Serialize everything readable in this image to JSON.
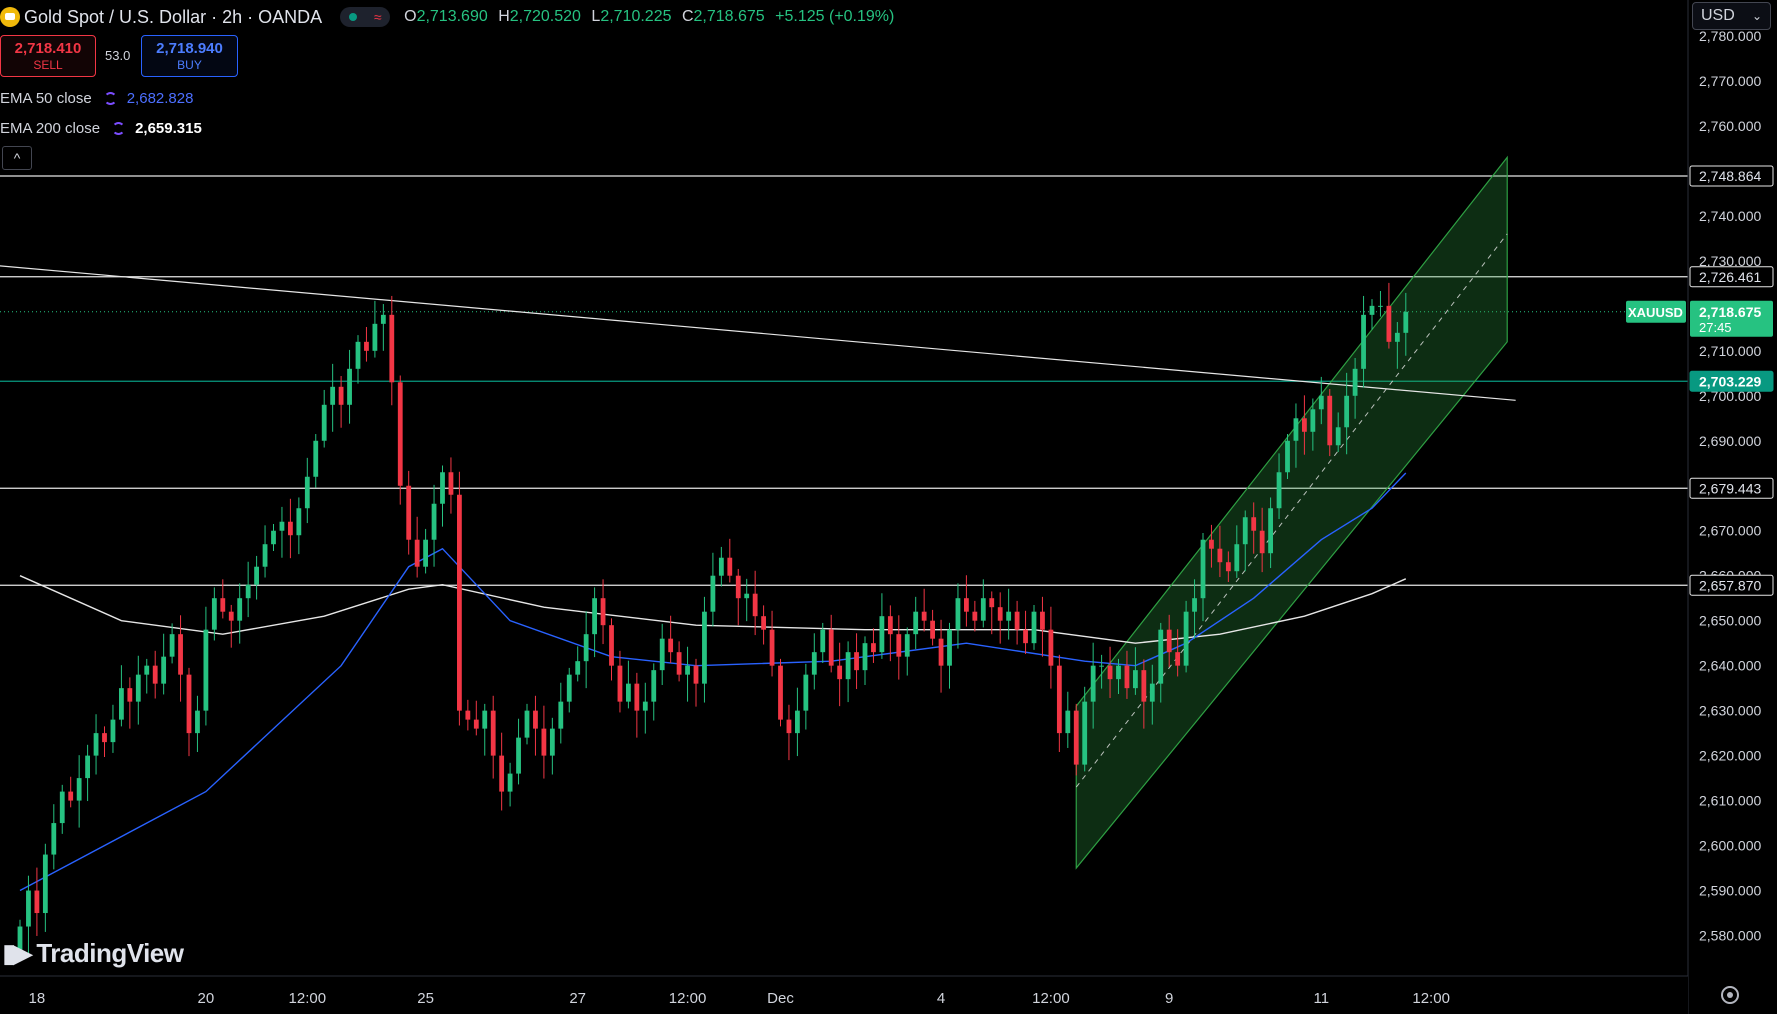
{
  "header": {
    "symbol": "Gold Spot / U.S. Dollar · 2h · OANDA",
    "ohlc": {
      "o_label": "O",
      "o": "2,713.690",
      "h_label": "H",
      "h": "2,720.520",
      "l_label": "L",
      "l": "2,710.225",
      "c_label": "C",
      "c": "2,718.675",
      "change": "+5.125 (+0.19%)"
    }
  },
  "trade": {
    "sell_price": "2,718.410",
    "sell_label": "SELL",
    "spread": "53.0",
    "buy_price": "2,718.940",
    "buy_label": "BUY"
  },
  "indicators": [
    {
      "name": "EMA 50 close",
      "value": "2,682.828",
      "color": "#2962ff"
    },
    {
      "name": "EMA 200 close",
      "value": "2,659.315",
      "color": "#ffffff"
    }
  ],
  "collapse_icon": "chevron-up-icon",
  "currency": "USD",
  "brand": "TradingView",
  "colors": {
    "up": "#26c281",
    "down": "#f23645",
    "ema50": "#2962ff",
    "ema200": "#e6e6e6",
    "channel": "#2ea043",
    "support": "#089981"
  },
  "chart_data": {
    "type": "candlestick",
    "symbol": "XAUUSD",
    "ylim": [
      2571,
      2788
    ],
    "y_ticks": [
      2580,
      2590,
      2600,
      2610,
      2620,
      2630,
      2640,
      2650,
      2660,
      2670,
      2680,
      2690,
      2700,
      2710,
      2720,
      2730,
      2740,
      2750,
      2760,
      2770,
      2780
    ],
    "x_ticks": [
      {
        "bar": 2,
        "label": "18"
      },
      {
        "bar": 22,
        "label": "20"
      },
      {
        "bar": 34,
        "label": "12:00"
      },
      {
        "bar": 48,
        "label": "25"
      },
      {
        "bar": 66,
        "label": "27"
      },
      {
        "bar": 79,
        "label": "12:00"
      },
      {
        "bar": 90,
        "label": "Dec"
      },
      {
        "bar": 109,
        "label": "4"
      },
      {
        "bar": 122,
        "label": "12:00"
      },
      {
        "bar": 136,
        "label": "9"
      },
      {
        "bar": 154,
        "label": "11"
      },
      {
        "bar": 167,
        "label": "12:00"
      }
    ],
    "closes": [
      2582,
      2590,
      2585,
      2598,
      2605,
      2612,
      2610,
      2615,
      2620,
      2625,
      2623,
      2628,
      2635,
      2632,
      2638,
      2640,
      2636,
      2642,
      2647,
      2638,
      2625,
      2630,
      2648,
      2655,
      2652,
      2650,
      2655,
      2658,
      2662,
      2667,
      2670,
      2672,
      2669,
      2675,
      2682,
      2690,
      2698,
      2702,
      2698,
      2706,
      2712,
      2710,
      2716,
      2718,
      2703,
      2680,
      2668,
      2662,
      2668,
      2676,
      2683,
      2678,
      2630,
      2628,
      2626,
      2630,
      2620,
      2612,
      2616,
      2624,
      2630,
      2626,
      2620,
      2626,
      2632,
      2638,
      2641,
      2647,
      2655,
      2649,
      2640,
      2632,
      2636,
      2630,
      2632,
      2639,
      2646,
      2643,
      2638,
      2640,
      2636,
      2652,
      2660,
      2664,
      2660,
      2655,
      2656,
      2651,
      2648,
      2640,
      2628,
      2625,
      2630,
      2638,
      2643,
      2648,
      2640,
      2637,
      2643,
      2639,
      2645,
      2643,
      2651,
      2647,
      2642,
      2647,
      2652,
      2650,
      2646,
      2640,
      2648,
      2655,
      2652,
      2650,
      2655,
      2653,
      2650,
      2652,
      2648,
      2645,
      2652,
      2648,
      2640,
      2625,
      2630,
      2618,
      2632,
      2640,
      2640,
      2637,
      2640,
      2635,
      2639,
      2632,
      2636,
      2648,
      2643,
      2640,
      2652,
      2655,
      2668,
      2666,
      2663,
      2661,
      2667,
      2673,
      2670,
      2665,
      2675,
      2683,
      2690,
      2695,
      2692,
      2697,
      2700,
      2689,
      2693,
      2700,
      2706,
      2718,
      2720,
      2720,
      2712,
      2714,
      2718.675
    ],
    "ema50": [
      {
        "bar": 0,
        "value": 2590
      },
      {
        "bar": 22,
        "value": 2612
      },
      {
        "bar": 38,
        "value": 2640
      },
      {
        "bar": 46,
        "value": 2662
      },
      {
        "bar": 50,
        "value": 2666
      },
      {
        "bar": 58,
        "value": 2650
      },
      {
        "bar": 70,
        "value": 2642
      },
      {
        "bar": 80,
        "value": 2640
      },
      {
        "bar": 96,
        "value": 2641
      },
      {
        "bar": 112,
        "value": 2645
      },
      {
        "bar": 126,
        "value": 2641
      },
      {
        "bar": 132,
        "value": 2640
      },
      {
        "bar": 138,
        "value": 2645
      },
      {
        "bar": 146,
        "value": 2655
      },
      {
        "bar": 154,
        "value": 2668
      },
      {
        "bar": 160,
        "value": 2675
      },
      {
        "bar": 164,
        "value": 2682.828
      }
    ],
    "ema200": [
      {
        "bar": 0,
        "value": 2660
      },
      {
        "bar": 12,
        "value": 2650
      },
      {
        "bar": 24,
        "value": 2647
      },
      {
        "bar": 36,
        "value": 2651
      },
      {
        "bar": 46,
        "value": 2657
      },
      {
        "bar": 50,
        "value": 2658
      },
      {
        "bar": 62,
        "value": 2653
      },
      {
        "bar": 80,
        "value": 2649
      },
      {
        "bar": 100,
        "value": 2648
      },
      {
        "bar": 120,
        "value": 2648
      },
      {
        "bar": 132,
        "value": 2645
      },
      {
        "bar": 142,
        "value": 2647
      },
      {
        "bar": 152,
        "value": 2651
      },
      {
        "bar": 160,
        "value": 2656
      },
      {
        "bar": 164,
        "value": 2659.315
      }
    ],
    "levels": [
      {
        "value": 2748.864,
        "label": "2,748.864",
        "style": "white"
      },
      {
        "value": 2726.461,
        "label": "2,726.461",
        "style": "white"
      },
      {
        "value": 2703.229,
        "label": "2,703.229",
        "style": "teal"
      },
      {
        "value": 2679.443,
        "label": "2,679.443",
        "style": "white"
      },
      {
        "value": 2657.87,
        "label": "2,657.870",
        "style": "white"
      }
    ],
    "trendline": {
      "from": {
        "bar": -3,
        "value": 2729
      },
      "to": {
        "bar": 177,
        "value": 2699
      }
    },
    "channel": {
      "start_bar": 125,
      "end_bar": 176,
      "upper": [
        2631,
        2753
      ],
      "lower": [
        2595,
        2712
      ],
      "mid": [
        2613,
        2736
      ]
    },
    "last_price": {
      "symbol": "XAUUSD",
      "price": "2,718.675",
      "value": 2718.675,
      "countdown": "27:45"
    }
  }
}
